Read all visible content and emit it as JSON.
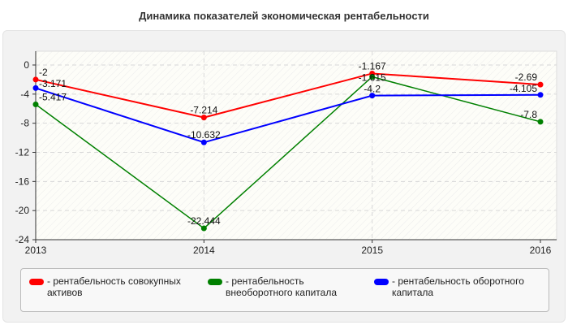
{
  "chart_data": {
    "type": "line",
    "title": "Динамика показателей экономическая рентабельности",
    "categories": [
      "2013",
      "2014",
      "2015",
      "2016"
    ],
    "ylim": [
      -24,
      0
    ],
    "yticks": [
      0,
      -4,
      -8,
      -12,
      -16,
      -20,
      -24
    ],
    "grid": true,
    "legend_position": "bottom",
    "series": [
      {
        "name": "- рентабельность совокупных активов",
        "color": "#ff0000",
        "values": [
          -2,
          -7.214,
          -1.167,
          -2.69
        ]
      },
      {
        "name": "- рентабельность внеоборотного капитала",
        "color": "#008000",
        "values": [
          -5.417,
          -22.444,
          -1.615,
          -7.8
        ]
      },
      {
        "name": "- рентабельность оборотного капитала",
        "color": "#0000ff",
        "values": [
          -3.171,
          -10.632,
          -4.2,
          -4.105
        ]
      }
    ]
  }
}
